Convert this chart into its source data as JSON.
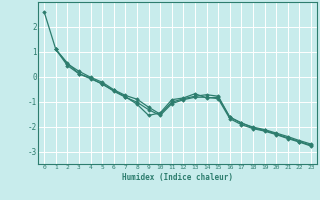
{
  "xlabel": "Humidex (Indice chaleur)",
  "bg_color": "#c8ecec",
  "grid_color": "#b0d8d8",
  "line_color": "#2d7d6e",
  "xlim": [
    -0.5,
    23.5
  ],
  "ylim": [
    -3.5,
    3.0
  ],
  "yticks": [
    -3,
    -2,
    -1,
    0,
    1,
    2
  ],
  "xticks": [
    0,
    1,
    2,
    3,
    4,
    5,
    6,
    7,
    8,
    9,
    10,
    11,
    12,
    13,
    14,
    15,
    16,
    17,
    18,
    19,
    20,
    21,
    22,
    23
  ],
  "series": [
    {
      "x": [
        0,
        1,
        2,
        3,
        4,
        5,
        6,
        7,
        8,
        9,
        10,
        11,
        12,
        13,
        14,
        15,
        16,
        17,
        18,
        19,
        20,
        21,
        22,
        23
      ],
      "y": [
        2.6,
        1.1,
        0.55,
        0.12,
        -0.05,
        -0.3,
        -0.55,
        -0.8,
        -1.1,
        -1.55,
        -1.45,
        -0.92,
        -0.85,
        -0.68,
        -0.85,
        -0.82,
        -1.62,
        -1.85,
        -2.05,
        -2.15,
        -2.3,
        -2.45,
        -2.6,
        -2.75
      ]
    },
    {
      "x": [
        1,
        2,
        3,
        4,
        5,
        6,
        7,
        8,
        9,
        10,
        11,
        12,
        13,
        14,
        15,
        16,
        17,
        18,
        19,
        20,
        21,
        22,
        23
      ],
      "y": [
        1.1,
        0.45,
        0.12,
        -0.08,
        -0.28,
        -0.58,
        -0.82,
        -1.02,
        -1.32,
        -1.55,
        -1.08,
        -0.92,
        -0.82,
        -0.82,
        -0.88,
        -1.68,
        -1.92,
        -2.08,
        -2.18,
        -2.32,
        -2.48,
        -2.62,
        -2.78
      ]
    },
    {
      "x": [
        1,
        2,
        3,
        4,
        5,
        6,
        7,
        8,
        9,
        10,
        11,
        12,
        13,
        14,
        15,
        16,
        17,
        18,
        19,
        20,
        21,
        22,
        23
      ],
      "y": [
        1.1,
        0.52,
        0.22,
        -0.02,
        -0.22,
        -0.52,
        -0.75,
        -0.9,
        -1.22,
        -1.5,
        -1.02,
        -0.88,
        -0.78,
        -0.72,
        -0.78,
        -1.62,
        -1.86,
        -2.02,
        -2.12,
        -2.26,
        -2.4,
        -2.56,
        -2.7
      ]
    }
  ],
  "marker": "D",
  "markersize": 1.8,
  "linewidth": 0.9
}
